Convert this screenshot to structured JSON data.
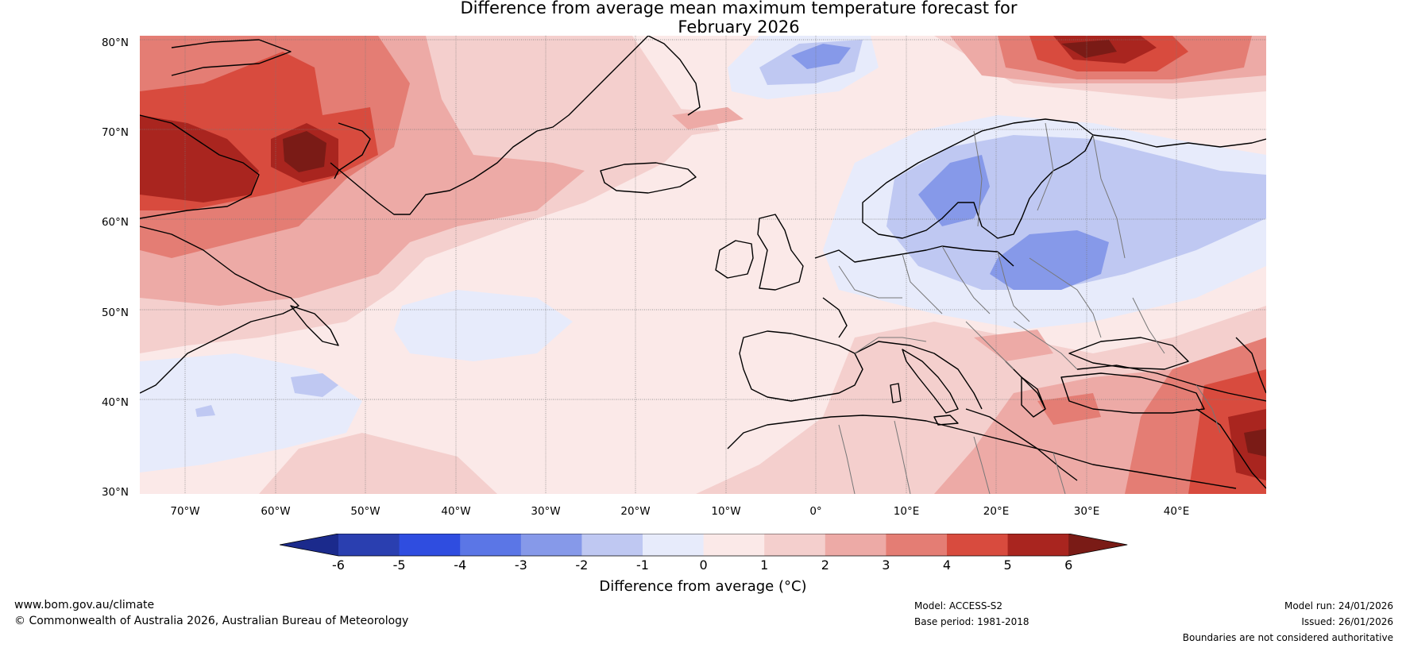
{
  "title": {
    "line1": "Difference from average mean maximum temperature forecast for",
    "line2": "February 2026"
  },
  "map": {
    "region": "North Atlantic and Europe",
    "lat_labels": [
      "80°N",
      "70°N",
      "60°N",
      "50°N",
      "40°N",
      "30°N"
    ],
    "lon_labels": [
      "70°W",
      "60°W",
      "50°W",
      "40°W",
      "30°W",
      "20°W",
      "10°W",
      "0°",
      "10°E",
      "20°E",
      "30°E",
      "40°E"
    ]
  },
  "colorbar": {
    "ticks": [
      "-6",
      "-5",
      "-4",
      "-3",
      "-2",
      "-1",
      "0",
      "1",
      "2",
      "3",
      "4",
      "5",
      "6"
    ],
    "label": "Difference from average (°C)",
    "colors": {
      "below_min": "#1b2a8c",
      "m6_m5": "#2a3fb0",
      "m5_m4": "#2f4de0",
      "m4_m3": "#5b76e6",
      "m3_m2": "#8699e9",
      "m2_m1": "#bfc8f2",
      "m1_0": "#e7ebfb",
      "p0_1": "#fbe9e8",
      "p1_2": "#f4cfcd",
      "p2_3": "#edaaa6",
      "p3_4": "#e47d74",
      "p4_5": "#d84b3e",
      "p5_6": "#a9251f",
      "above_max": "#7a1b16"
    }
  },
  "footer": {
    "website": "www.bom.gov.au/climate",
    "copyright": "© Commonwealth of Australia 2026, Australian Bureau of Meteorology",
    "model": "Model: ACCESS-S2",
    "base_period": "Base period: 1981-2018",
    "model_run": "Model run: 24/01/2026",
    "issued": "Issued: 26/01/2026",
    "disclaimer": "Boundaries are not considered authoritative"
  }
}
